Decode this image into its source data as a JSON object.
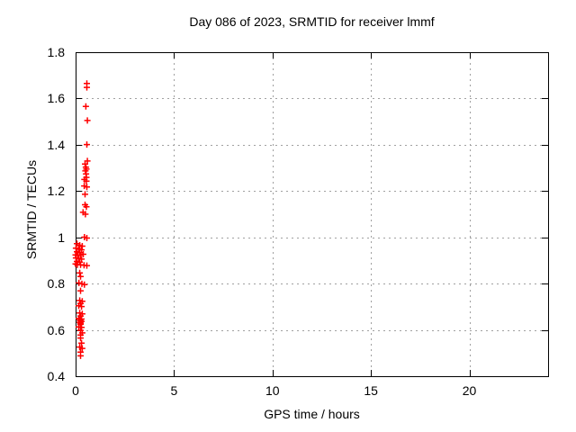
{
  "chart_data": {
    "type": "scatter",
    "title": "Day 086 of 2023, SRMTID for receiver lmmf",
    "xlabel": "GPS time / hours",
    "ylabel": "SRMTID / TECUs",
    "xlim": [
      0,
      24
    ],
    "ylim": [
      0.4,
      1.8
    ],
    "xticks": [
      "0",
      "5",
      "10",
      "15",
      "20"
    ],
    "yticks": [
      "0.4",
      "0.6",
      "0.8",
      "1",
      "1.2",
      "1.4",
      "1.6",
      "1.8"
    ],
    "grid": true,
    "legend_position": "none",
    "marker": "plus",
    "colors": {
      "marker": "#ff0000",
      "grid": "#a0a0a0",
      "axis": "#000000",
      "background": "#ffffff"
    },
    "series": [
      {
        "name": "SRMTID",
        "points": [
          [
            0.57,
            1.665
          ],
          [
            0.57,
            1.648
          ],
          [
            0.52,
            1.566
          ],
          [
            0.6,
            1.505
          ],
          [
            0.57,
            1.401
          ],
          [
            0.6,
            1.33
          ],
          [
            0.48,
            1.317
          ],
          [
            0.52,
            1.303
          ],
          [
            0.55,
            1.295
          ],
          [
            0.5,
            1.287
          ],
          [
            0.53,
            1.274
          ],
          [
            0.55,
            1.259
          ],
          [
            0.45,
            1.25
          ],
          [
            0.55,
            1.243
          ],
          [
            0.44,
            1.222
          ],
          [
            0.57,
            1.218
          ],
          [
            0.48,
            1.186
          ],
          [
            0.48,
            1.141
          ],
          [
            0.55,
            1.132
          ],
          [
            0.38,
            1.108
          ],
          [
            0.5,
            1.1
          ],
          [
            0.45,
            1.001
          ],
          [
            0.57,
            0.997
          ],
          [
            0.07,
            0.973
          ],
          [
            0.21,
            0.966
          ],
          [
            0.34,
            0.962
          ],
          [
            0.02,
            0.953
          ],
          [
            0.16,
            0.949
          ],
          [
            0.3,
            0.946
          ],
          [
            0.07,
            0.938
          ],
          [
            0.21,
            0.934
          ],
          [
            0.0,
            0.924
          ],
          [
            0.11,
            0.922
          ],
          [
            0.25,
            0.924
          ],
          [
            0.39,
            0.927
          ],
          [
            0.02,
            0.911
          ],
          [
            0.16,
            0.909
          ],
          [
            0.3,
            0.906
          ],
          [
            0.07,
            0.896
          ],
          [
            0.21,
            0.893
          ],
          [
            0.0,
            0.885
          ],
          [
            0.09,
            0.881
          ],
          [
            0.25,
            0.881
          ],
          [
            0.43,
            0.879
          ],
          [
            0.57,
            0.878
          ],
          [
            0.21,
            0.846
          ],
          [
            0.25,
            0.831
          ],
          [
            0.17,
            0.803
          ],
          [
            0.32,
            0.799
          ],
          [
            0.45,
            0.796
          ],
          [
            0.25,
            0.769
          ],
          [
            0.21,
            0.727
          ],
          [
            0.34,
            0.724
          ],
          [
            0.25,
            0.714
          ],
          [
            0.16,
            0.704
          ],
          [
            0.3,
            0.701
          ],
          [
            0.21,
            0.673
          ],
          [
            0.34,
            0.669
          ],
          [
            0.25,
            0.66
          ],
          [
            0.16,
            0.65
          ],
          [
            0.3,
            0.647
          ],
          [
            0.21,
            0.643
          ],
          [
            0.25,
            0.64
          ],
          [
            0.3,
            0.637
          ],
          [
            0.21,
            0.633
          ],
          [
            0.25,
            0.63
          ],
          [
            0.25,
            0.624
          ],
          [
            0.16,
            0.613
          ],
          [
            0.3,
            0.611
          ],
          [
            0.25,
            0.598
          ],
          [
            0.34,
            0.587
          ],
          [
            0.25,
            0.578
          ],
          [
            0.25,
            0.565
          ],
          [
            0.3,
            0.543
          ],
          [
            0.21,
            0.526
          ],
          [
            0.34,
            0.52
          ],
          [
            0.25,
            0.504
          ],
          [
            0.25,
            0.488
          ]
        ]
      }
    ]
  }
}
